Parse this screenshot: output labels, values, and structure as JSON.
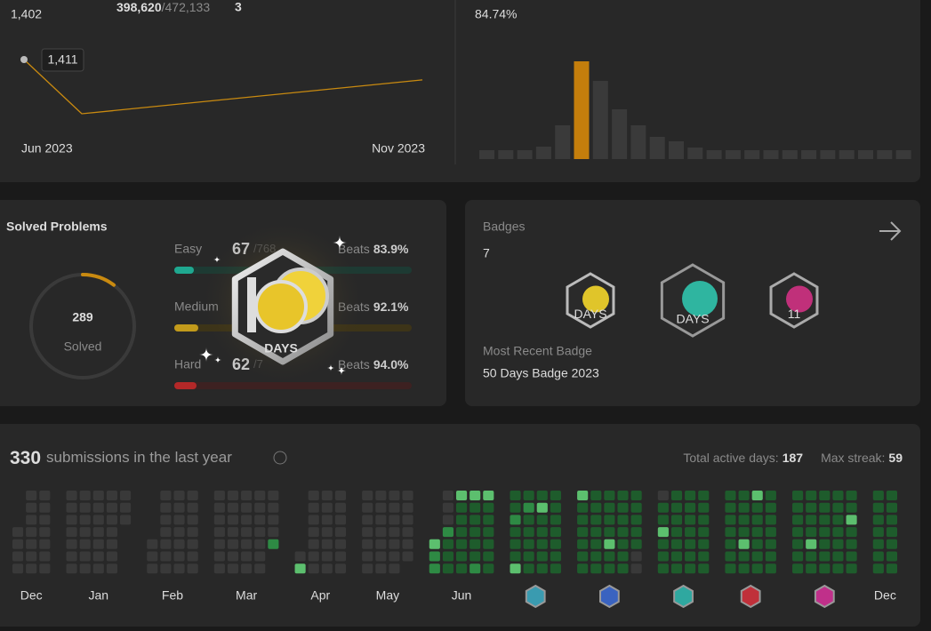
{
  "rating": {
    "value": "1,402",
    "global_rank": "398,620",
    "global_total": "/472,133",
    "attended": "3",
    "tooltip": "1,411",
    "x_labels": [
      "Jun 2023",
      "Nov 2023"
    ],
    "line": [
      1411,
      1387,
      1402
    ]
  },
  "distribution": {
    "percent": "84.74%",
    "bars": [
      10,
      10,
      10,
      14,
      38,
      110,
      88,
      56,
      38,
      25,
      20,
      13,
      10,
      10,
      10,
      10,
      10,
      10,
      10,
      10,
      10,
      10,
      10
    ],
    "highlight": 5
  },
  "solved": {
    "title": "Solved Problems",
    "count": "289",
    "label": "Solved",
    "badge_label": "DAYS",
    "levels": [
      {
        "name": "Easy",
        "solved": "67",
        "total": "/768",
        "beats": "Beats",
        "beats_value": "83.9%"
      },
      {
        "name": "Medium",
        "beats": "Beats",
        "beats_value": "92.1%"
      },
      {
        "name": "Hard",
        "solved": "62",
        "total": "/7",
        "beats": "Beats",
        "beats_value": "94.0%"
      }
    ]
  },
  "badges": {
    "title": "Badges",
    "count": "7",
    "icons": [
      {
        "label": "DAYS"
      },
      {
        "label": "DAYS"
      },
      {
        "label": "11"
      }
    ],
    "recent_label": "Most Recent Badge",
    "recent_name": "50 Days Badge 2023"
  },
  "submissions": {
    "count": "330",
    "text": "submissions in the last year",
    "active_label": "Total active days:",
    "active": "187",
    "streak_label": "Max streak:",
    "streak": "59",
    "months": [
      {
        "label": "Dec",
        "weeks": [
          "---0000",
          "0000000",
          "0000000"
        ]
      },
      {
        "label": "Jan",
        "weeks": [
          "0000000",
          "0000000",
          "0000000",
          "0000000",
          "000----"
        ]
      },
      {
        "label": "Feb",
        "weeks": [
          "----000",
          "0000000",
          "0000000",
          "0000000"
        ]
      },
      {
        "label": "Mar",
        "weeks": [
          "0000000",
          "0000000",
          "0000000",
          "0000000",
          "00002--"
        ]
      },
      {
        "label": "Apr",
        "weeks": [
          "-----03",
          "0000000",
          "0000000",
          "0000000"
        ]
      },
      {
        "label": "May",
        "weeks": [
          "0000000",
          "0000000",
          "0000000",
          "000000-"
        ]
      },
      {
        "label": "Jun",
        "weeks": [
          "----322",
          "0002111",
          "3111111",
          "3111112",
          "3111111"
        ]
      },
      {
        "label": null,
        "weeks": [
          "1121113",
          "1211111",
          "1311111",
          "1111111"
        ]
      },
      {
        "label": null,
        "weeks": [
          "3111111",
          "1111111",
          "1111311",
          "1111111",
          "1111100"
        ]
      },
      {
        "label": null,
        "weeks": [
          "0113111",
          "1111111",
          "1111111",
          "1111111"
        ]
      },
      {
        "label": null,
        "weeks": [
          "1111111",
          "1111311",
          "3111111",
          "1111111"
        ]
      },
      {
        "label": null,
        "weeks": [
          "1111111",
          "1111311",
          "1111111",
          "1111111",
          "1131111"
        ]
      },
      {
        "label": "Dec",
        "weeks": [
          "1111111",
          "1111111"
        ]
      }
    ]
  }
}
